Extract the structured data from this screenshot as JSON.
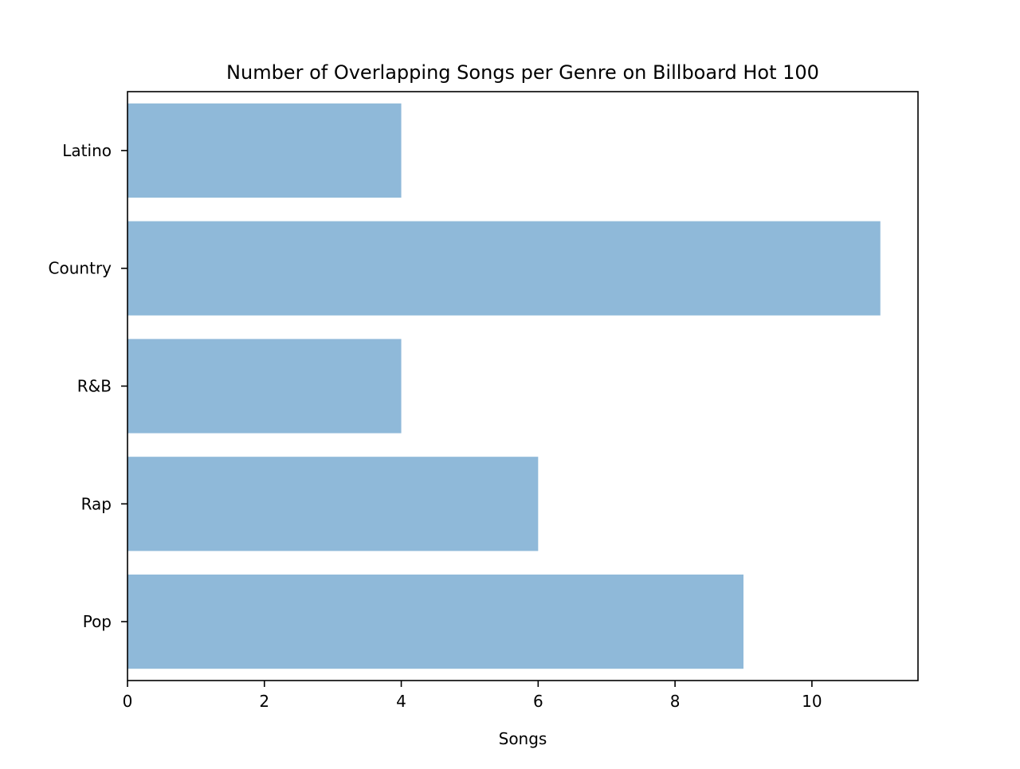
{
  "chart_data": {
    "type": "bar",
    "orientation": "horizontal",
    "title": "Number of Overlapping Songs per Genre on Billboard Hot 100",
    "xlabel": "Songs",
    "ylabel": "",
    "categories": [
      "Pop",
      "Rap",
      "R&B",
      "Country",
      "Latino"
    ],
    "values": [
      9,
      6,
      4,
      11,
      4
    ],
    "xlim": [
      0,
      11.55
    ],
    "xticks": [
      0,
      2,
      4,
      6,
      8,
      10
    ],
    "grid": false,
    "legend": "none",
    "bar_color": "#8fb9d9"
  }
}
